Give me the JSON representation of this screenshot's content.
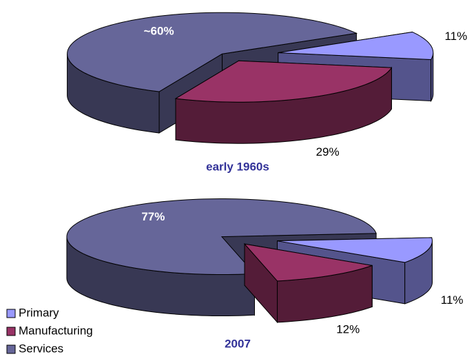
{
  "chart_data": [
    {
      "type": "pie",
      "title": "early 1960s",
      "categories": [
        "Primary",
        "Manufacturing",
        "Services"
      ],
      "values": [
        11,
        29,
        60
      ],
      "value_labels": [
        "11%",
        "29%",
        "~60%"
      ],
      "colors": [
        "#9999ff",
        "#993366",
        "#666699"
      ]
    },
    {
      "type": "pie",
      "title": "2007",
      "categories": [
        "Primary",
        "Manufacturing",
        "Services"
      ],
      "values": [
        11,
        12,
        77
      ],
      "value_labels": [
        "11%",
        "12%",
        "77%"
      ],
      "colors": [
        "#9999ff",
        "#993366",
        "#666699"
      ]
    }
  ]
}
